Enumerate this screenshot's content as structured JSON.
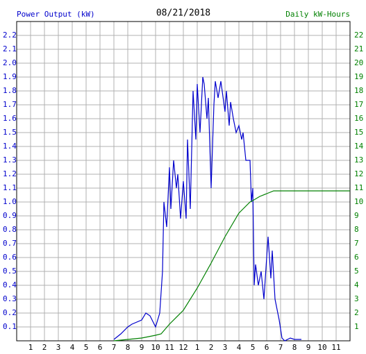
{
  "chart_data": {
    "type": "line",
    "title": "08/21/2018",
    "ylabel": "Power Output (kW)",
    "y2label": "Daily kW-Hours",
    "xlim": [
      0,
      24
    ],
    "xticks": [
      1,
      2,
      3,
      4,
      5,
      6,
      7,
      8,
      9,
      10,
      11,
      12,
      {
        "value": 13,
        "label": "1"
      },
      {
        "value": 14,
        "label": "2"
      },
      {
        "value": 15,
        "label": "3"
      },
      {
        "value": 16,
        "label": "4"
      },
      {
        "value": 17,
        "label": "5"
      },
      {
        "value": 18,
        "label": "6"
      },
      {
        "value": 19,
        "label": "7"
      },
      {
        "value": 20,
        "label": "8"
      },
      {
        "value": 21,
        "label": "9"
      },
      {
        "value": 22,
        "label": "10"
      },
      {
        "value": 23,
        "label": "11"
      }
    ],
    "ylim": [
      0,
      2.3
    ],
    "yticks": [
      0.1,
      0.2,
      0.3,
      0.4,
      0.5,
      0.6,
      0.7,
      0.8,
      0.9,
      {
        "value": 1,
        "label": "1.0"
      },
      1.1,
      1.2,
      1.3,
      1.4,
      1.5,
      1.6,
      1.7,
      1.8,
      1.9,
      {
        "value": 2,
        "label": "2.0"
      },
      2.1,
      2.2
    ],
    "y2lim": [
      0,
      23
    ],
    "y2ticks": [
      1,
      2,
      3,
      4,
      5,
      6,
      7,
      8,
      9,
      10,
      11,
      12,
      13,
      14,
      15,
      16,
      17,
      18,
      19,
      20,
      21,
      22
    ],
    "grid": true,
    "series": [
      {
        "name": "Power Output (kW)",
        "color": "#0000cc",
        "axis": "y",
        "x": [
          7,
          7.5,
          8,
          8.3,
          9,
          9.3,
          9.6,
          10,
          10.3,
          10.5,
          10.6,
          10.8,
          11,
          11.1,
          11.3,
          11.5,
          11.6,
          11.8,
          12,
          12.2,
          12.3,
          12.5,
          12.7,
          12.9,
          13,
          13.2,
          13.4,
          13.5,
          13.7,
          13.8,
          14,
          14.2,
          14.3,
          14.5,
          14.7,
          15,
          15.1,
          15.3,
          15.4,
          15.6,
          15.8,
          16,
          16.2,
          16.3,
          16.5,
          16.8,
          16.9,
          17,
          17.1,
          17.2,
          17.4,
          17.6,
          17.8,
          18.1,
          18.3,
          18.4,
          18.6,
          18.9,
          19.1,
          19.3,
          19.7,
          20,
          20.5
        ],
        "values": [
          0.01,
          0.05,
          0.1,
          0.12,
          0.15,
          0.2,
          0.18,
          0.1,
          0.2,
          0.5,
          1.0,
          0.82,
          1.25,
          0.95,
          1.3,
          1.1,
          1.2,
          0.88,
          1.15,
          0.88,
          1.45,
          0.95,
          1.8,
          1.45,
          1.85,
          1.5,
          1.9,
          1.85,
          1.6,
          1.75,
          1.1,
          1.7,
          1.87,
          1.75,
          1.87,
          1.65,
          1.8,
          1.55,
          1.72,
          1.6,
          1.5,
          1.55,
          1.45,
          1.5,
          1.3,
          1.3,
          1.0,
          1.1,
          0.4,
          0.55,
          0.4,
          0.5,
          0.3,
          0.75,
          0.45,
          0.65,
          0.3,
          0.15,
          0.02,
          0,
          0.02,
          0.01,
          0.01
        ]
      },
      {
        "name": "Daily kW-Hours",
        "color": "#008000",
        "axis": "y2",
        "x": [
          7,
          8,
          9,
          10,
          10.4,
          11,
          12,
          13,
          14,
          15,
          16,
          16.8,
          17,
          17.5,
          18,
          18.5,
          19,
          24
        ],
        "values": [
          0,
          0.1,
          0.2,
          0.4,
          0.5,
          1.2,
          2.2,
          3.8,
          5.6,
          7.5,
          9.2,
          10.0,
          10.1,
          10.4,
          10.6,
          10.8,
          10.8,
          10.8
        ]
      }
    ]
  }
}
